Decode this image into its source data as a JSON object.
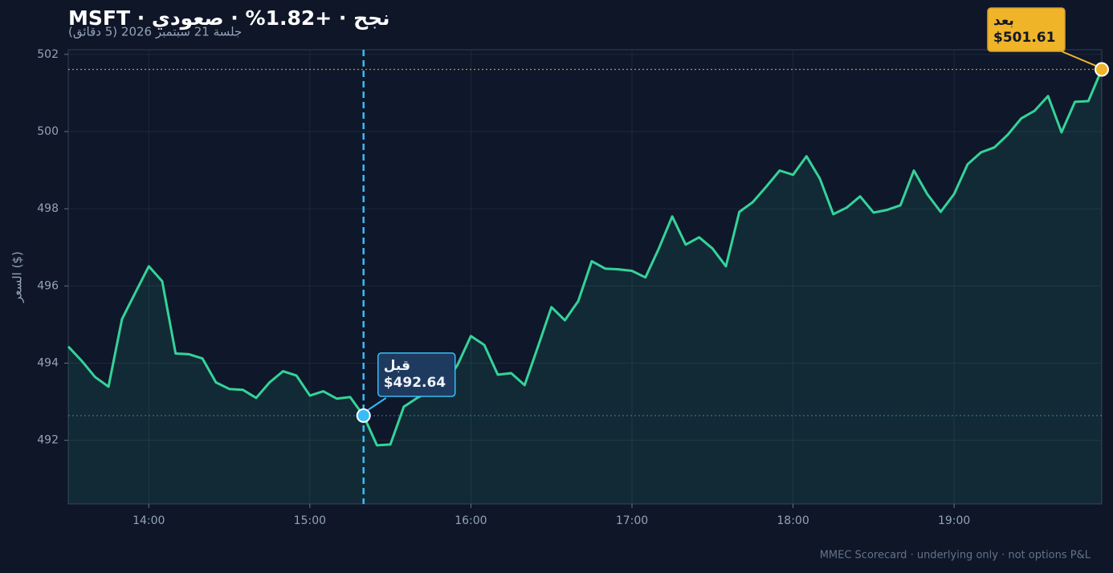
{
  "chart_data": {
    "type": "line",
    "title": "MSFT · نجح · +1.82% · صعودي",
    "subtitle": "جلسة 21 سبتمبر 2026 (5 دقائق)",
    "y_label": "السعر ($)",
    "footer": "MMEC Scorecard · underlying only · not options P&L",
    "x": [
      "13:30",
      "13:35",
      "13:40",
      "13:45",
      "13:50",
      "13:55",
      "14:00",
      "14:05",
      "14:10",
      "14:15",
      "14:20",
      "14:25",
      "14:30",
      "14:35",
      "14:40",
      "14:45",
      "14:50",
      "14:55",
      "15:00",
      "15:05",
      "15:10",
      "15:15",
      "15:20",
      "15:25",
      "15:30",
      "15:35",
      "15:40",
      "15:45",
      "15:50",
      "15:55",
      "16:00",
      "16:05",
      "16:10",
      "16:15",
      "16:20",
      "16:25",
      "16:30",
      "16:35",
      "16:40",
      "16:45",
      "16:50",
      "16:55",
      "17:00",
      "17:05",
      "17:10",
      "17:15",
      "17:20",
      "17:25",
      "17:30",
      "17:35",
      "17:40",
      "17:45",
      "17:50",
      "17:55",
      "18:00",
      "18:05",
      "18:10",
      "18:15",
      "18:20",
      "18:25",
      "18:30",
      "18:35",
      "18:40",
      "18:45",
      "18:50",
      "18:55",
      "19:00",
      "19:05",
      "19:10",
      "19:15",
      "19:20",
      "19:25",
      "19:30",
      "19:35",
      "19:40",
      "19:45",
      "19:50",
      "19:55"
    ],
    "series": [
      {
        "name": "MSFT",
        "color": "#34d399",
        "values": [
          494.43,
          494.06,
          493.64,
          493.39,
          495.14,
          495.83,
          496.51,
          496.12,
          494.25,
          494.23,
          494.12,
          493.5,
          493.33,
          493.31,
          493.1,
          493.5,
          493.79,
          493.68,
          493.16,
          493.27,
          493.08,
          493.12,
          492.64,
          491.87,
          491.89,
          492.87,
          493.1,
          493.29,
          493.43,
          493.95,
          494.7,
          494.47,
          493.7,
          493.74,
          493.43,
          494.43,
          495.45,
          495.11,
          495.61,
          496.64,
          496.45,
          496.43,
          496.39,
          496.22,
          496.97,
          497.8,
          497.07,
          497.26,
          496.97,
          496.51,
          497.92,
          498.17,
          498.57,
          498.99,
          498.88,
          499.36,
          498.78,
          497.86,
          498.03,
          498.32,
          497.9,
          497.97,
          498.09,
          498.99,
          498.38,
          497.92,
          498.38,
          499.15,
          499.46,
          499.59,
          499.92,
          500.34,
          500.54,
          500.92,
          499.98,
          500.77,
          500.79,
          501.61
        ]
      }
    ],
    "annotations": [
      {
        "label": "قبل",
        "x": "15:20",
        "value": 492.64,
        "value_label": "$492.64",
        "color": "#38bdf8"
      },
      {
        "label": "بعد",
        "x": "19:55",
        "value": 501.61,
        "value_label": "$501.61",
        "color": "#f0b429"
      }
    ],
    "xlim": [
      "13:30",
      "19:55"
    ],
    "xticks": [
      "14:00",
      "15:00",
      "16:00",
      "17:00",
      "18:00",
      "19:00"
    ],
    "ylim": [
      490.35,
      502.12
    ],
    "yticks": [
      492,
      494,
      496,
      498,
      500,
      502
    ],
    "grid": true
  }
}
